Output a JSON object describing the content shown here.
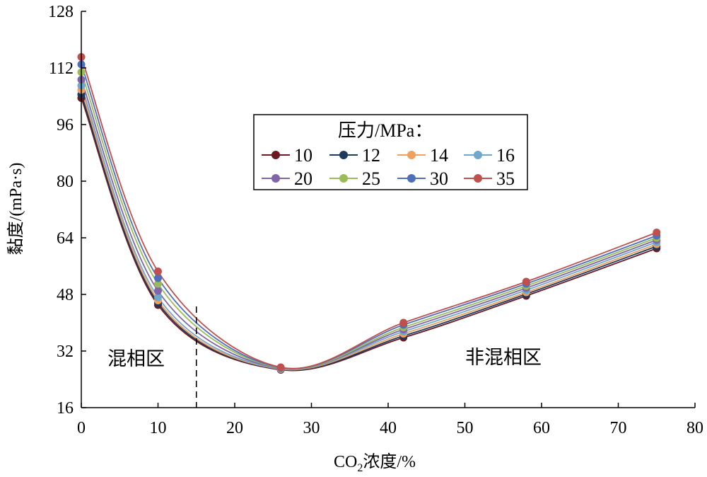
{
  "chart_data": {
    "type": "line",
    "xlabel": "CO2浓度/%",
    "xlabel_main": "CO",
    "xlabel_sub": "2",
    "xlabel_tail": "浓度/%",
    "ylabel": "黏度/(mPa·s)",
    "xlim": [
      0,
      80
    ],
    "ylim": [
      16,
      128
    ],
    "xticks": [
      0,
      10,
      20,
      30,
      40,
      50,
      60,
      70,
      80
    ],
    "yticks": [
      16,
      32,
      48,
      64,
      80,
      96,
      112,
      128
    ],
    "xtick_labels": [
      "0",
      "10",
      "20",
      "30",
      "40",
      "50",
      "60",
      "70",
      "80"
    ],
    "ytick_labels": [
      "16",
      "32",
      "48",
      "64",
      "80",
      "96",
      "112",
      "128"
    ],
    "grid": false,
    "legend_title": "压力/MPa：",
    "legend_position": "center",
    "x": [
      0,
      10,
      26,
      42,
      58,
      75
    ],
    "series": [
      {
        "name": "10",
        "color": "#6b1a22",
        "values": [
          103.5,
          45.0,
          26.7,
          35.8,
          47.6,
          61.0
        ]
      },
      {
        "name": "12",
        "color": "#1e3b5e",
        "values": [
          104.5,
          45.6,
          26.8,
          36.3,
          48.1,
          61.6
        ]
      },
      {
        "name": "14",
        "color": "#f0a05e",
        "values": [
          105.8,
          46.3,
          26.9,
          36.9,
          48.6,
          62.2
        ]
      },
      {
        "name": "16",
        "color": "#6fa8cc",
        "values": [
          107.0,
          47.2,
          27.0,
          37.5,
          49.2,
          62.8
        ]
      },
      {
        "name": "20",
        "color": "#8066a8",
        "values": [
          108.7,
          49.0,
          27.1,
          38.1,
          49.8,
          63.4
        ]
      },
      {
        "name": "25",
        "color": "#9bbb59",
        "values": [
          110.8,
          51.0,
          27.2,
          38.7,
          50.4,
          64.0
        ]
      },
      {
        "name": "30",
        "color": "#4f6fbd",
        "values": [
          113.0,
          52.6,
          27.3,
          39.4,
          51.0,
          64.6
        ]
      },
      {
        "name": "35",
        "color": "#c0504d",
        "values": [
          115.1,
          54.5,
          27.4,
          40.0,
          51.6,
          65.5
        ]
      }
    ],
    "annotations": {
      "miscible_label": "混相区",
      "immiscible_label": "非混相区",
      "boundary_x": 15
    }
  }
}
